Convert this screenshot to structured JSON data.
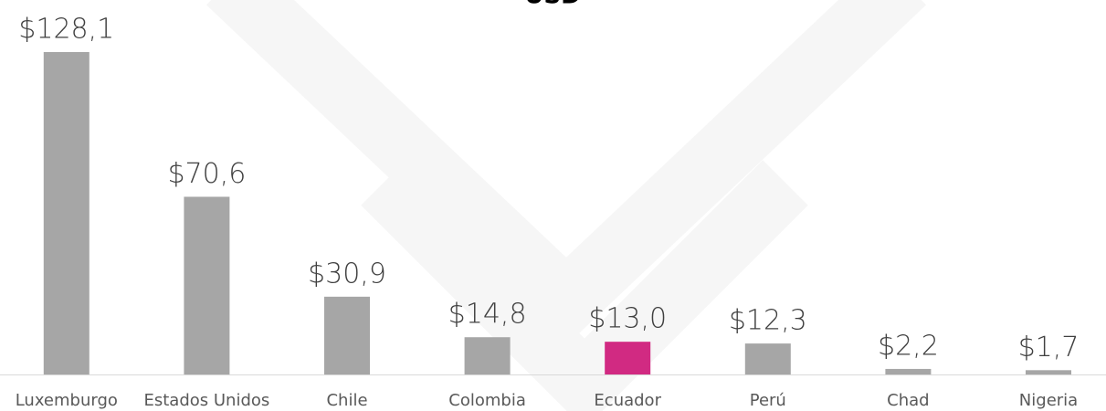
{
  "chart_data": {
    "type": "bar",
    "title": "USD",
    "categories": [
      "Luxemburgo",
      "Estados Unidos",
      "Chile",
      "Colombia",
      "Ecuador",
      "Perú",
      "Chad",
      "Nigeria"
    ],
    "values": [
      128.1,
      70.6,
      30.9,
      14.8,
      13.0,
      12.3,
      2.2,
      1.7
    ],
    "value_labels": [
      "$128,1",
      "$70,6",
      "$30,9",
      "$14,8",
      "$13,0",
      "$12,3",
      "$2,2",
      "$1,7"
    ],
    "colors": [
      "#a6a6a6",
      "#a6a6a6",
      "#a6a6a6",
      "#a6a6a6",
      "#d12a82",
      "#a6a6a6",
      "#a6a6a6",
      "#a6a6a6"
    ]
  }
}
